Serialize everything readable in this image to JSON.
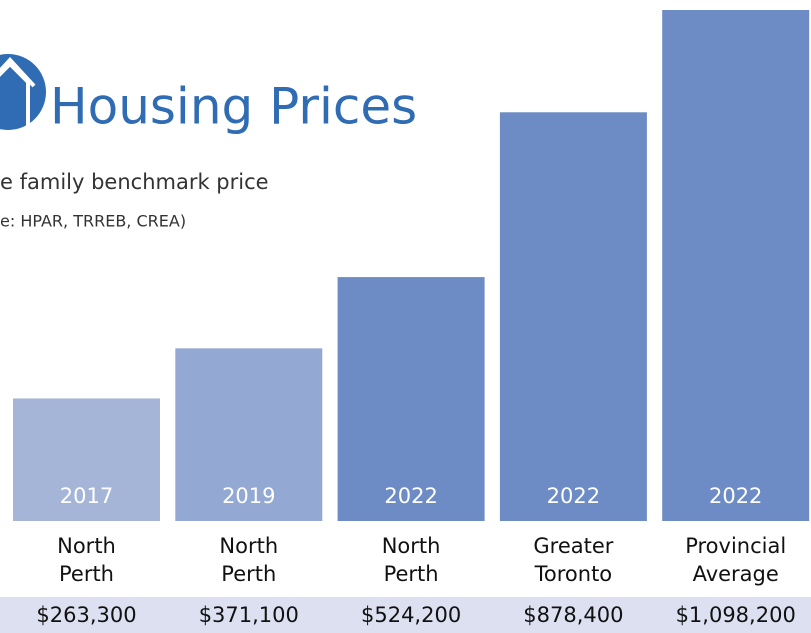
{
  "chart_data": {
    "type": "bar",
    "title": "Housing Prices",
    "subtitle": "e family benchmark price",
    "source": "e: HPAR, TRREB, CREA)",
    "categories": [
      [
        "North",
        "Perth"
      ],
      [
        "North",
        "Perth"
      ],
      [
        "North",
        "Perth"
      ],
      [
        "Greater",
        "Toronto"
      ],
      [
        "Provincial",
        "Average"
      ]
    ],
    "years": [
      "2017",
      "2019",
      "2022",
      "2022",
      "2022"
    ],
    "values": [
      263300,
      371100,
      524200,
      878400,
      1098200
    ],
    "value_labels": [
      "$263,300",
      "$371,100",
      "$524,200",
      "$878,400",
      "$1,098,200"
    ],
    "colors": [
      "#a5b5d8",
      "#93a8d3",
      "#6d8cc5",
      "#6d8cc5",
      "#6d8cc5"
    ]
  }
}
